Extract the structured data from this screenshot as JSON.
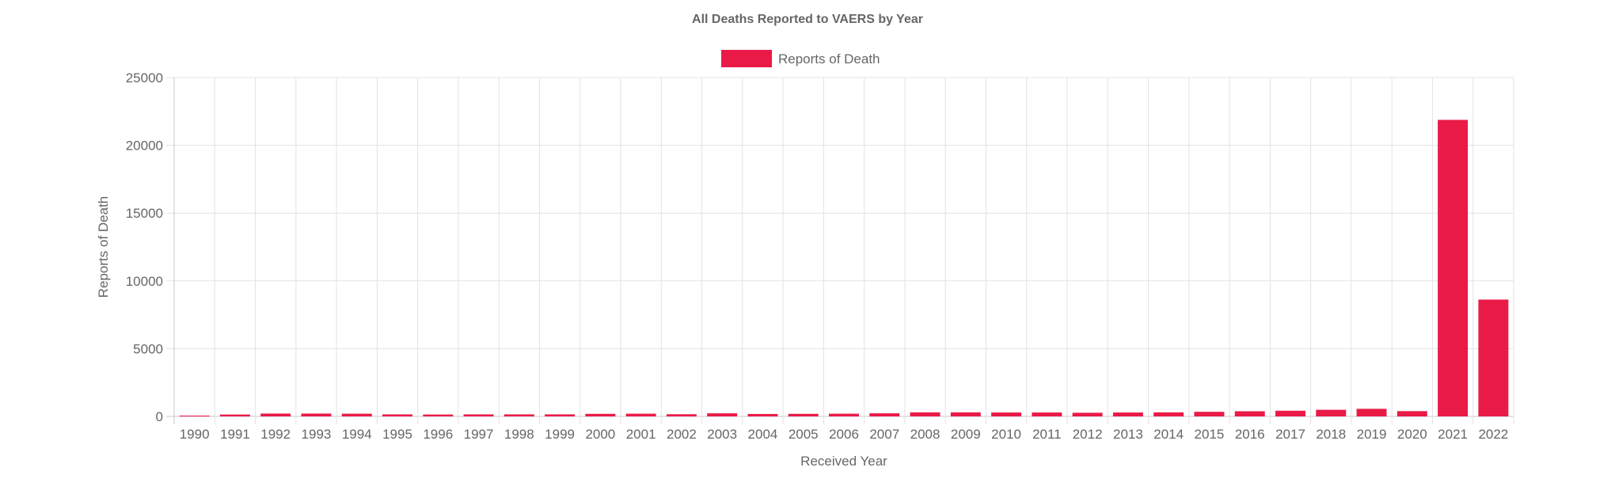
{
  "chart_data": {
    "type": "bar",
    "title": "All Deaths Reported to VAERS by Year",
    "xlabel": "Received Year",
    "ylabel": "Reports of Death",
    "ylim": [
      0,
      25000
    ],
    "yticks": [
      "25000",
      "20000",
      "15000",
      "10000",
      "5000",
      "0"
    ],
    "grid": true,
    "legend_position": "top",
    "colors": {
      "bar": "#ea1a47",
      "grid": "#e3e3e3",
      "text": "#666666"
    },
    "categories": [
      "1990",
      "1991",
      "1992",
      "1993",
      "1994",
      "1995",
      "1996",
      "1997",
      "1998",
      "1999",
      "2000",
      "2001",
      "2002",
      "2003",
      "2004",
      "2005",
      "2006",
      "2007",
      "2008",
      "2009",
      "2010",
      "2011",
      "2012",
      "2013",
      "2014",
      "2015",
      "2016",
      "2017",
      "2018",
      "2019",
      "2020",
      "2021",
      "2022"
    ],
    "series": [
      {
        "name": "Reports of Death",
        "values": [
          60,
          140,
          210,
          210,
          200,
          150,
          140,
          150,
          150,
          150,
          190,
          200,
          160,
          230,
          180,
          190,
          200,
          230,
          300,
          300,
          290,
          290,
          270,
          290,
          300,
          340,
          380,
          420,
          490,
          560,
          390,
          21880,
          8620
        ]
      }
    ]
  }
}
